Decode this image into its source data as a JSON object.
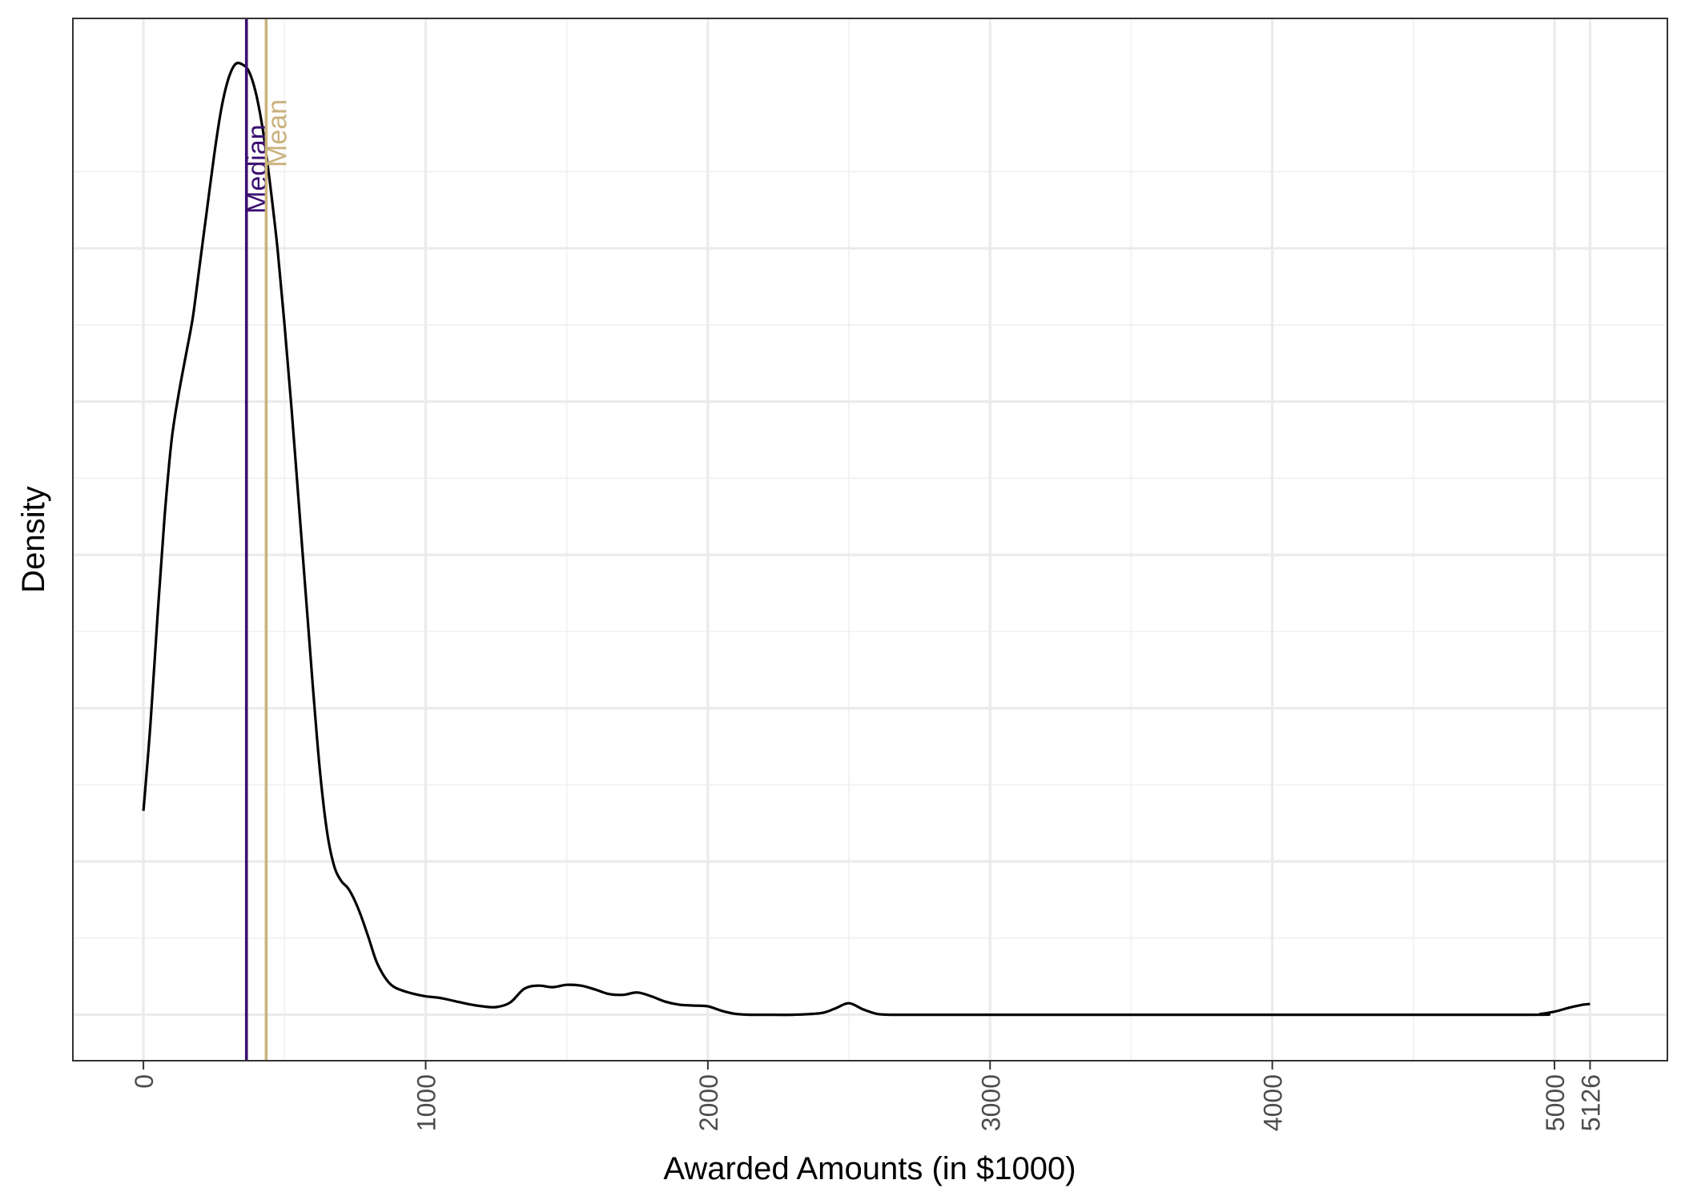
{
  "chart_data": {
    "type": "area",
    "xlabel": "Awarded Amounts (in $1000)",
    "ylabel": "Density",
    "xlim": [
      -250,
      5400
    ],
    "ylim": [
      -6e-05,
      0.0013
    ],
    "x_ticks": [
      0,
      1000,
      2000,
      3000,
      4000,
      5000,
      5126
    ],
    "x_tick_labels": [
      "0",
      "1000",
      "2000",
      "3000",
      "4000",
      "5000",
      "5126"
    ],
    "x_minor_grid": [
      500,
      1500,
      2500,
      3500,
      4500
    ],
    "y_ticks_hidden": [
      0,
      0.0002,
      0.0004,
      0.0006,
      0.0008,
      0.001
    ],
    "y_minor_grid": [
      0.0001,
      0.0003,
      0.0005,
      0.0007,
      0.0009,
      0.0011
    ],
    "grid": true,
    "series": [
      {
        "x": [
          0,
          25,
          50,
          75,
          100,
          125,
          150,
          175,
          200,
          225,
          250,
          275,
          300,
          325,
          350,
          375,
          400,
          425,
          450,
          475,
          500,
          525,
          550,
          575,
          600,
          625,
          650,
          675,
          700,
          725,
          750,
          775,
          800,
          825,
          850,
          875,
          900,
          950,
          1000,
          1050,
          1100,
          1150,
          1200,
          1250,
          1300,
          1350,
          1400,
          1450,
          1500,
          1550,
          1600,
          1650,
          1700,
          1750,
          1800,
          1850,
          1900,
          1950,
          2000,
          2050,
          2100,
          2150,
          2200,
          2300,
          2400,
          2450,
          2500,
          2550,
          2600,
          2650,
          2700,
          3000,
          4000,
          4900,
          4950,
          5000,
          5050,
          5100,
          5126
        ],
        "values": [
          0.000266,
          0.00038,
          0.00052,
          0.00065,
          0.00075,
          0.00081,
          0.00086,
          0.00091,
          0.00098,
          0.00105,
          0.00112,
          0.00118,
          0.00122,
          0.00124,
          0.00124,
          0.00123,
          0.0012,
          0.00115,
          0.00108,
          0.001,
          0.0009,
          0.00079,
          0.00067,
          0.00055,
          0.00043,
          0.00032,
          0.00024,
          0.000195,
          0.000175,
          0.000165,
          0.000148,
          0.000125,
          9.8e-05,
          7e-05,
          5.2e-05,
          4e-05,
          3.4e-05,
          2.8e-05,
          2.4e-05,
          2.2e-05,
          1.8e-05,
          1.4e-05,
          1.1e-05,
          1e-05,
          1.6e-05,
          3.4e-05,
          3.8e-05,
          3.6e-05,
          3.9e-05,
          3.8e-05,
          3.3e-05,
          2.7e-05,
          2.6e-05,
          2.9e-05,
          2.4e-05,
          1.7e-05,
          1.3e-05,
          1.2e-05,
          1.1e-05,
          5e-06,
          1e-06,
          0,
          0,
          0,
          2e-06,
          8e-06,
          1.5e-05,
          7e-06,
          1e-06,
          0,
          0,
          0,
          0,
          0,
          1e-06,
          4e-06,
          9e-06,
          1.3e-05,
          1.4e-05
        ]
      }
    ],
    "reference_lines": [
      {
        "label": "Median",
        "x": 365,
        "color": "#3b0f70"
      },
      {
        "label": "Mean",
        "x": 435,
        "color": "#c9b27c"
      }
    ]
  }
}
